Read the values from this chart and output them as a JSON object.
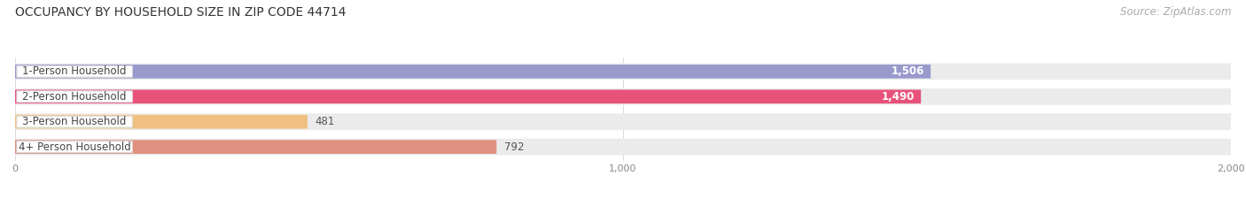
{
  "title": "OCCUPANCY BY HOUSEHOLD SIZE IN ZIP CODE 44714",
  "source": "Source: ZipAtlas.com",
  "categories": [
    "1-Person Household",
    "2-Person Household",
    "3-Person Household",
    "4+ Person Household"
  ],
  "values": [
    1506,
    1490,
    481,
    792
  ],
  "bar_colors": [
    "#9999cc",
    "#e8527a",
    "#f0c080",
    "#e09080"
  ],
  "value_labels": [
    "1,506",
    "1,490",
    "481",
    "792"
  ],
  "xlim": [
    0,
    2000
  ],
  "xticks": [
    0,
    1000,
    2000
  ],
  "xtick_labels": [
    "0",
    "1,000",
    "2,000"
  ],
  "title_fontsize": 10,
  "source_fontsize": 8.5,
  "label_fontsize": 8.5,
  "value_fontsize": 8.5,
  "bg_color": "#ffffff",
  "bar_bg_color": "#ebebeb",
  "bar_height": 0.55,
  "label_box_color": "#ffffff"
}
